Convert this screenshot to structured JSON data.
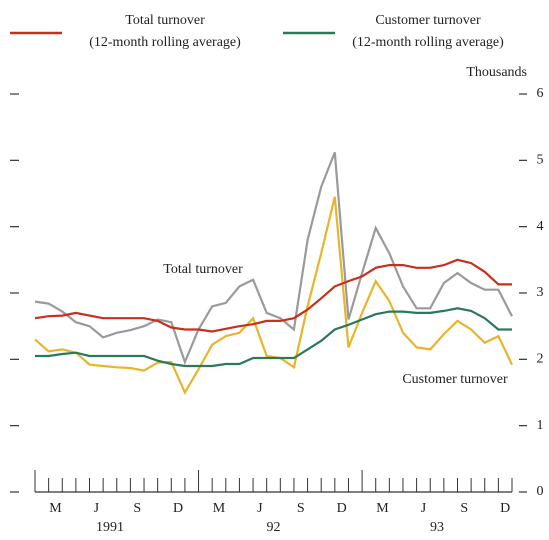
{
  "chart_data": {
    "type": "line",
    "y_unit_label": "Thousands",
    "categories": [
      null,
      null,
      "M",
      null,
      null,
      "J",
      null,
      null,
      "S",
      null,
      null,
      "D",
      null,
      null,
      "M",
      null,
      null,
      "J",
      null,
      null,
      "S",
      null,
      null,
      "D",
      null,
      null,
      "M",
      null,
      null,
      "J",
      null,
      null,
      "S",
      null,
      null,
      "D"
    ],
    "year_labels": [
      "1991",
      "92",
      "93"
    ],
    "ylim": [
      0,
      6
    ],
    "yticks": [
      0,
      1,
      2,
      3,
      4,
      5,
      6
    ],
    "series": [
      {
        "color": "#9a9a9a",
        "values": [
          2.87,
          2.84,
          2.72,
          2.56,
          2.5,
          2.33,
          2.4,
          2.44,
          2.5,
          2.6,
          2.56,
          1.96,
          2.45,
          2.8,
          2.85,
          3.1,
          3.2,
          2.7,
          2.62,
          2.45,
          3.8,
          4.6,
          5.12,
          2.6,
          3.3,
          3.98,
          3.6,
          3.1,
          2.77,
          2.77,
          3.15,
          3.3,
          3.15,
          3.05,
          3.05,
          2.65
        ]
      },
      {
        "color": "#e8b52a",
        "values": [
          2.3,
          2.12,
          2.15,
          2.1,
          1.92,
          1.9,
          1.88,
          1.87,
          1.83,
          1.95,
          1.96,
          1.5,
          1.85,
          2.22,
          2.35,
          2.4,
          2.62,
          2.05,
          2.02,
          1.88,
          2.8,
          3.6,
          4.45,
          2.18,
          2.7,
          3.18,
          2.88,
          2.4,
          2.18,
          2.15,
          2.38,
          2.58,
          2.45,
          2.25,
          2.35,
          1.92
        ]
      },
      {
        "name": "Total turnover\n(12-month rolling average)",
        "color": "#c8301e",
        "values": [
          2.62,
          2.65,
          2.66,
          2.7,
          2.66,
          2.62,
          2.62,
          2.62,
          2.62,
          2.58,
          2.48,
          2.45,
          2.45,
          2.42,
          2.46,
          2.5,
          2.53,
          2.58,
          2.58,
          2.62,
          2.75,
          2.92,
          3.1,
          3.18,
          3.25,
          3.38,
          3.42,
          3.42,
          3.38,
          3.38,
          3.42,
          3.5,
          3.45,
          3.32,
          3.13,
          3.13
        ]
      },
      {
        "name": "Customer turnover\n(12-month rolling average)",
        "color": "#2a7a5a",
        "values": [
          2.05,
          2.05,
          2.08,
          2.1,
          2.05,
          2.05,
          2.05,
          2.05,
          2.05,
          1.98,
          1.93,
          1.9,
          1.9,
          1.9,
          1.93,
          1.93,
          2.02,
          2.02,
          2.02,
          2.02,
          2.15,
          2.28,
          2.45,
          2.52,
          2.6,
          2.68,
          2.72,
          2.72,
          2.7,
          2.7,
          2.73,
          2.77,
          2.73,
          2.62,
          2.45,
          2.45
        ]
      }
    ],
    "annotations": [
      "Total turnover",
      "Customer turnover"
    ]
  }
}
